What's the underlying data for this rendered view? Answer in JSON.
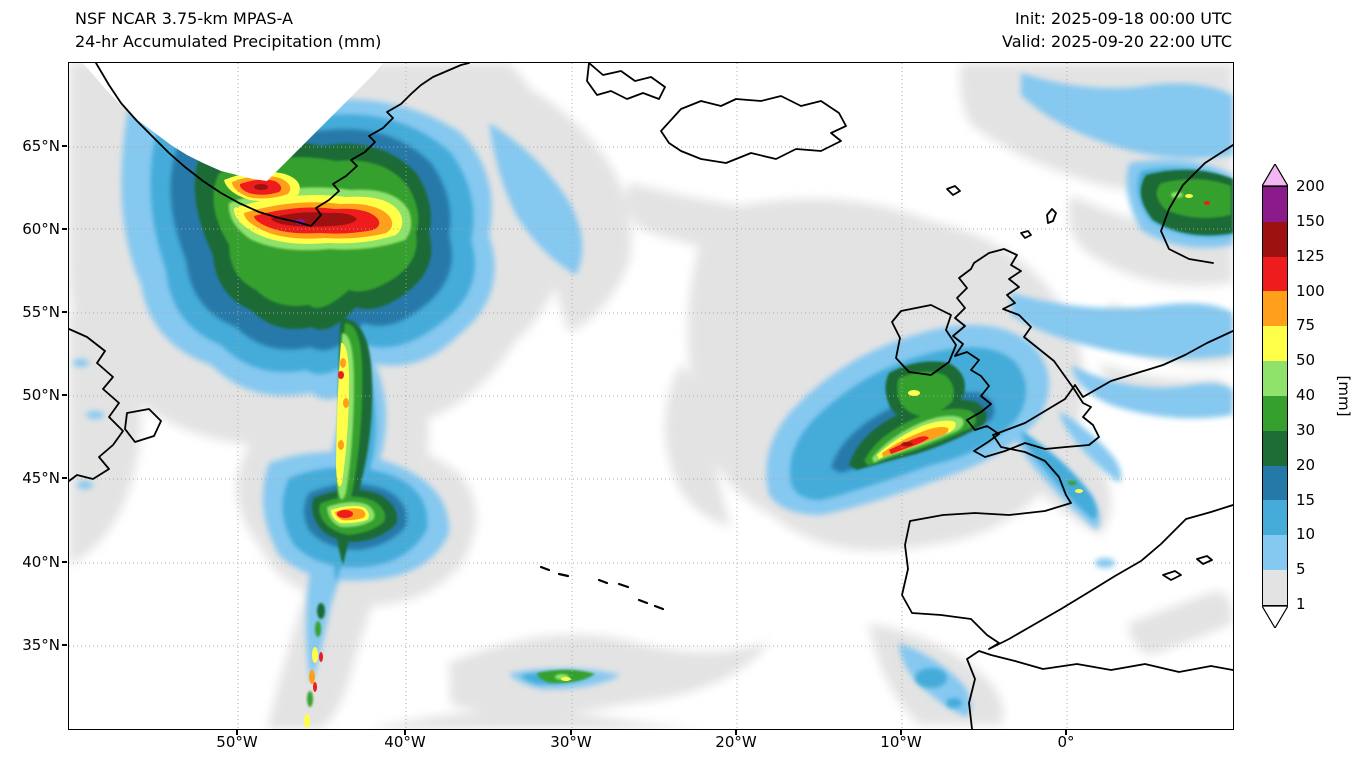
{
  "header": {
    "title_line1": "NSF NCAR 3.75-km MPAS-A",
    "title_line2": "24-hr Accumulated Precipitation (mm)",
    "init_label": "Init: 2025-09-18 00:00 UTC",
    "valid_label": "Valid: 2025-09-20 22:00 UTC"
  },
  "axes": {
    "lat_ticks": [
      "65°N",
      "60°N",
      "55°N",
      "50°N",
      "45°N",
      "40°N",
      "35°N"
    ],
    "lon_ticks": [
      "50°W",
      "40°W",
      "30°W",
      "20°W",
      "10°W",
      "0°"
    ]
  },
  "colorbar": {
    "unit": "[mm]",
    "over_color": "#f2b6f2",
    "under_color": "#ffffff",
    "bottom_label": "1",
    "segments": [
      {
        "range": "150-200",
        "top_label": "200",
        "color": "#8b1a8b"
      },
      {
        "range": "125-150",
        "top_label": "150",
        "color": "#9e1111"
      },
      {
        "range": "100-125",
        "top_label": "125",
        "color": "#ee1c1c"
      },
      {
        "range": "75-100",
        "top_label": "100",
        "color": "#ff9f1a"
      },
      {
        "range": "50-75",
        "top_label": "75",
        "color": "#ffff4a"
      },
      {
        "range": "40-50",
        "top_label": "50",
        "color": "#8fe36b"
      },
      {
        "range": "30-40",
        "top_label": "40",
        "color": "#35a02e"
      },
      {
        "range": "20-30",
        "top_label": "30",
        "color": "#1d6b35"
      },
      {
        "range": "15-20",
        "top_label": "20",
        "color": "#2579a8"
      },
      {
        "range": "10-15",
        "top_label": "15",
        "color": "#45acd9"
      },
      {
        "range": "5-10",
        "top_label": "10",
        "color": "#85c8f0"
      },
      {
        "range": "1-5",
        "top_label": "5",
        "color": "#e3e3e3"
      }
    ]
  },
  "palette": {
    "c1": "#e3e3e3",
    "c5": "#85c8f0",
    "c10": "#45acd9",
    "c15": "#2579a8",
    "c20": "#1d6b35",
    "c30": "#35a02e",
    "c40": "#8fe36b",
    "c50": "#ffff4a",
    "c75": "#ff9f1a",
    "c100": "#ee1c1c",
    "c125": "#9e1111",
    "c150": "#8b1a8b",
    "over": "#f2b6f2",
    "under": "#ffffff",
    "coast": "#000000",
    "grid": "#a6a6a6",
    "land": "#ffffff",
    "sea": "#ffffff"
  },
  "chart_data": {
    "type": "heatmap",
    "subtype": "geographic-precipitation-contour-map",
    "title": "24-hr Accumulated Precipitation (mm)",
    "model": "NSF NCAR 3.75-km MPAS-A",
    "init_time": "2025-09-18 00:00 UTC",
    "valid_time": "2025-09-20 22:00 UTC",
    "units": "mm",
    "projection": "lat-lon (North Atlantic)",
    "lon_range_deg": [
      -60,
      10
    ],
    "lat_range_deg": [
      30,
      70
    ],
    "lat_gridlines": [
      65,
      60,
      55,
      50,
      45,
      40,
      35
    ],
    "lon_gridlines": [
      -50,
      -40,
      -30,
      -20,
      -10,
      0
    ],
    "grid_style": "dotted gray",
    "legend_position": "right colorbar with over/under arrows",
    "contour_levels_mm": [
      1,
      5,
      10,
      15,
      20,
      30,
      40,
      50,
      75,
      100,
      125,
      150,
      200
    ],
    "palette_low_to_high": [
      "#e3e3e3",
      "#85c8f0",
      "#45acd9",
      "#2579a8",
      "#1d6b35",
      "#35a02e",
      "#8fe36b",
      "#ffff4a",
      "#ff9f1a",
      "#ee1c1c",
      "#9e1111",
      "#8b1a8b"
    ],
    "features": [
      {
        "name": "Greenland coastal frontal band",
        "approx_location": "59-62N, 52-40W along SE Greenland coast",
        "peak_mm": "150-200, isolated >200 (magenta speck)",
        "description": "Intense E-W band of 75-150 mm with embedded dark-red cores south of the Greenland ice sheet"
      },
      {
        "name": "Trailing cold front",
        "approx_location": "from 58N 43W south to 36N 46W",
        "peak_mm": "40-100 in narrow streaks",
        "description": "Long comma tail of 20-50 mm with embedded yellow/orange/red streaks extending to the bottom edge"
      },
      {
        "name": "Secondary low",
        "approx_location": "41-44N, 47-42W",
        "peak_mm": "75-125",
        "description": "Compact green blob with yellow/orange/red core"
      },
      {
        "name": "Cyclone over Ireland/UK",
        "approx_location": "band from 48N 15W northeast across Ireland and Scotland",
        "peak_mm": "75-125 off SW Ireland",
        "description": "Curved rainband 20-50 mm with orange/red streaks; blue bands continue NE past Scotland"
      },
      {
        "name": "SW Norway orographic rain",
        "approx_location": "59-63N, 4-9E",
        "peak_mm": "30-75",
        "description": "Dark green coastal patch with small yellow/red specks; blue streaks over Norwegian Sea"
      },
      {
        "name": "Biscay / NW France streaks",
        "approx_location": "44-48N, 2-8W",
        "peak_mm": "10-40",
        "description": "Thin cyan/blue diagonal streaks with tiny green-yellow specks"
      },
      {
        "name": "Morocco / Alboran showers",
        "approx_location": "32-36N, 2-8W",
        "peak_mm": "5-15",
        "description": "Small cyan patches near the Strait of Gibraltar"
      },
      {
        "name": "Widespread trace precipitation",
        "approx_location": "most of the subpolar North Atlantic",
        "peak_mm": "1-5",
        "description": "Light gray (1-5 mm) covering large amorphous areas"
      }
    ]
  }
}
